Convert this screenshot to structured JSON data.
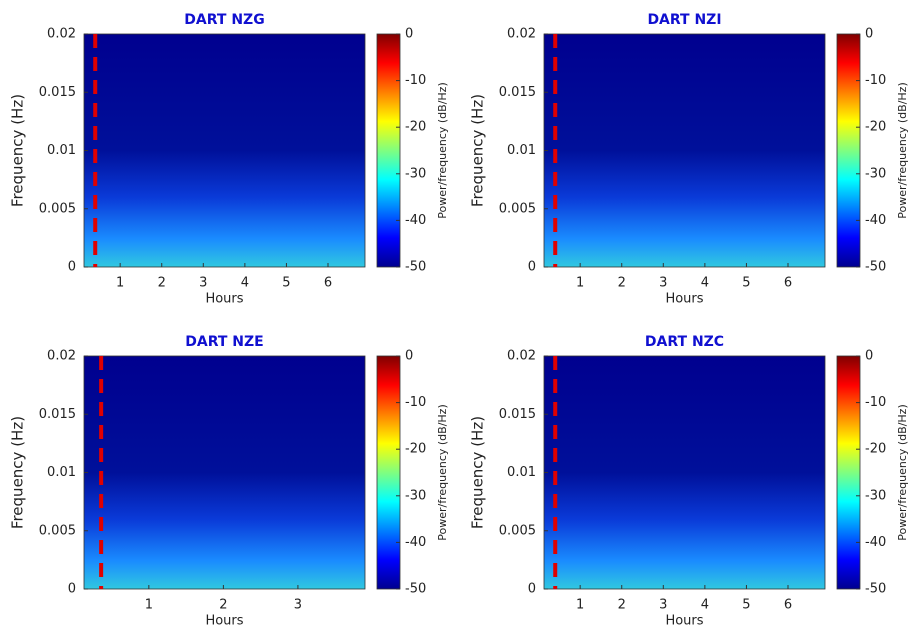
{
  "chart_data": [
    {
      "type": "heatmap",
      "title": "DART NZG",
      "xlabel": "Hours",
      "ylabel": "Frequency (Hz)",
      "xlim": [
        0.13,
        6.89
      ],
      "ylim": [
        0,
        0.02
      ],
      "xticks": [
        1,
        2,
        3,
        4,
        5,
        6
      ],
      "yticks": [
        0,
        0.005,
        0.01,
        0.015,
        0.02
      ],
      "colorbar_label": "Power/frequency (dB/Hz)",
      "clim": [
        -50,
        0
      ],
      "cticks": [
        0,
        -10,
        -20,
        -30,
        -40,
        -50
      ],
      "colormap": "jet",
      "dashed_line_x": 0.4,
      "dashed_line_color": "#e00000"
    },
    {
      "type": "heatmap",
      "title": "DART NZI",
      "xlabel": "Hours",
      "ylabel": "Frequency (Hz)",
      "xlim": [
        0.13,
        6.89
      ],
      "ylim": [
        0,
        0.02
      ],
      "xticks": [
        1,
        2,
        3,
        4,
        5,
        6
      ],
      "yticks": [
        0,
        0.005,
        0.01,
        0.015,
        0.02
      ],
      "colorbar_label": "Power/frequency (dB/Hz)",
      "clim": [
        -50,
        0
      ],
      "cticks": [
        0,
        -10,
        -20,
        -30,
        -40,
        -50
      ],
      "colormap": "jet",
      "dashed_line_x": 0.4,
      "dashed_line_color": "#e00000"
    },
    {
      "type": "heatmap",
      "title": "DART NZE",
      "xlabel": "Hours",
      "ylabel": "Frequency (Hz)",
      "xlim": [
        0.13,
        3.9
      ],
      "ylim": [
        0,
        0.02
      ],
      "xticks": [
        1,
        2,
        3
      ],
      "yticks": [
        0,
        0.005,
        0.01,
        0.015,
        0.02
      ],
      "colorbar_label": "Power/frequency (dB/Hz)",
      "clim": [
        -50,
        0
      ],
      "cticks": [
        0,
        -10,
        -20,
        -30,
        -40,
        -50
      ],
      "colormap": "jet",
      "dashed_line_x": 0.36,
      "dashed_line_color": "#e00000"
    },
    {
      "type": "heatmap",
      "title": "DART NZC",
      "xlabel": "Hours",
      "ylabel": "Frequency (Hz)",
      "xlim": [
        0.13,
        6.89
      ],
      "ylim": [
        0,
        0.02
      ],
      "xticks": [
        1,
        2,
        3,
        4,
        5,
        6
      ],
      "yticks": [
        0,
        0.005,
        0.01,
        0.015,
        0.02
      ],
      "colorbar_label": "Power/frequency (dB/Hz)",
      "clim": [
        -50,
        0
      ],
      "cticks": [
        0,
        -10,
        -20,
        -30,
        -40,
        -50
      ],
      "colormap": "jet",
      "dashed_line_x": 0.4,
      "dashed_line_color": "#e00000"
    }
  ]
}
